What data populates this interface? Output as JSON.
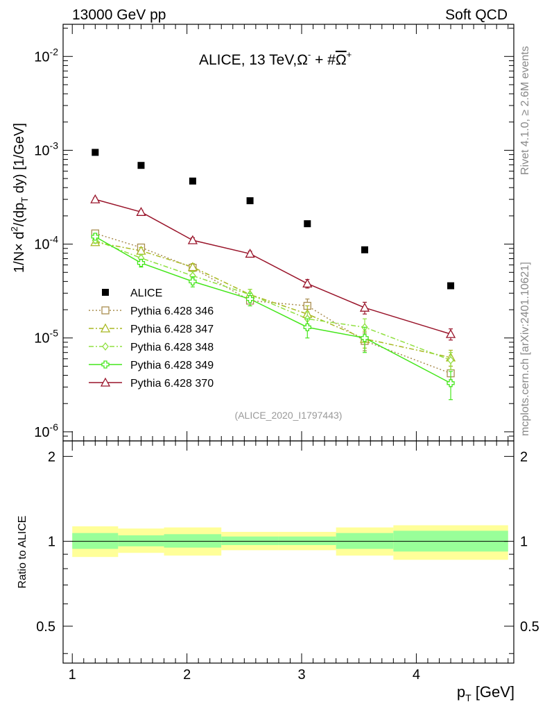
{
  "header": {
    "left": "13000 GeV pp",
    "right": "Soft QCD"
  },
  "side_labels": {
    "rivet": "Rivet 4.1.0, ≥ 2.6M events",
    "mcplots": "mcplots.cern.ch [arXiv:2401.10621]"
  },
  "colors": {
    "alice": "#000000",
    "p346": "#a98d4f",
    "p347": "#a8b820",
    "p348": "#90e040",
    "p349": "#44e61a",
    "p370": "#99142a",
    "band_inner": "#99ff99",
    "band_outer": "#ffff99"
  },
  "chart_data": {
    "type": "scatter",
    "title": "ALICE, 13 TeV,Ω⁻ + #Ω̅⁺",
    "title_main": "ALICE, 13 TeV,",
    "title_formula": "Ω",
    "title_sup1": "-",
    "title_plus": " + #",
    "title_formula2": "Ω",
    "title_sup2": "+",
    "analysis_id": "(ALICE_2020_I1797443)",
    "ylabel": "1/N × d²/(dp_T dy) [1/GeV]",
    "ylabel_parts": [
      "1/N",
      "×",
      " d",
      "2",
      "/(dp",
      "T",
      " dy) [1/GeV]"
    ],
    "xlabel_main": "p",
    "xlabel_sub": "T",
    "xlabel_unit": " [GeV]",
    "xlim": [
      0.92,
      4.85
    ],
    "ylim": [
      8e-07,
      0.022
    ],
    "ylog": true,
    "y_ticks": [
      {
        "value": 1e-06,
        "mant": "10",
        "exp": "-6"
      },
      {
        "value": 1e-05,
        "mant": "10",
        "exp": "-5"
      },
      {
        "value": 0.0001,
        "mant": "10",
        "exp": "-4"
      },
      {
        "value": 0.001,
        "mant": "10",
        "exp": "-3"
      },
      {
        "value": 0.01,
        "mant": "10",
        "exp": "-2"
      }
    ],
    "x_ticks": [
      "1",
      "2",
      "3",
      "4"
    ],
    "x_tick_values": [
      1,
      2,
      3,
      4
    ],
    "ratio": {
      "ylabel": "Ratio to ALICE",
      "ylim": [
        0.37,
        2.27
      ],
      "ticks": [
        "0.5",
        "1",
        "2"
      ],
      "tick_values": [
        0.5,
        1,
        2
      ],
      "bins": [
        [
          1.0,
          1.4
        ],
        [
          1.4,
          1.8
        ],
        [
          1.8,
          2.3
        ],
        [
          2.3,
          2.8
        ],
        [
          2.8,
          3.3
        ],
        [
          3.3,
          3.8
        ],
        [
          3.8,
          4.8
        ]
      ],
      "inner_band": [
        [
          0.94,
          1.07
        ],
        [
          0.96,
          1.05
        ],
        [
          0.95,
          1.06
        ],
        [
          0.97,
          1.04
        ],
        [
          0.97,
          1.04
        ],
        [
          0.94,
          1.07
        ],
        [
          0.92,
          1.09
        ]
      ],
      "outer_band": [
        [
          0.88,
          1.13
        ],
        [
          0.91,
          1.11
        ],
        [
          0.89,
          1.12
        ],
        [
          0.93,
          1.08
        ],
        [
          0.93,
          1.08
        ],
        [
          0.89,
          1.12
        ],
        [
          0.86,
          1.14
        ]
      ]
    },
    "x": [
      1.2,
      1.6,
      2.05,
      2.55,
      3.05,
      3.55,
      4.3
    ],
    "series": [
      {
        "name": "ALICE",
        "key": "alice",
        "marker": "square-filled",
        "line": "none",
        "values": [
          0.00095,
          0.00069,
          0.00047,
          0.00029,
          0.000165,
          8.7e-05,
          3.6e-05
        ],
        "errors": [
          0,
          0,
          0,
          0,
          0,
          0,
          0
        ]
      },
      {
        "name": "Pythia 6.428 346",
        "key": "p346",
        "marker": "square-open",
        "line": "dotted",
        "values": [
          0.00013,
          9.2e-05,
          5.6e-05,
          2.5e-05,
          2.2e-05,
          9.3e-06,
          4.2e-06
        ],
        "errors": [
          8e-06,
          7e-06,
          5e-06,
          3e-06,
          4e-06,
          2e-06,
          8e-07
        ]
      },
      {
        "name": "Pythia 6.428 347",
        "key": "p347",
        "marker": "triangle-open",
        "line": "dashdot",
        "values": [
          0.000105,
          8.5e-05,
          5.7e-05,
          2.9e-05,
          1.8e-05,
          9.8e-06,
          6.2e-06
        ],
        "errors": [
          8e-06,
          7e-06,
          5e-06,
          4e-06,
          4e-06,
          2e-06,
          1.2e-06
        ]
      },
      {
        "name": "Pythia 6.428 348",
        "key": "p348",
        "marker": "diamond-open",
        "line": "dashdot",
        "values": [
          0.00011,
          7.1e-05,
          4.6e-05,
          2.9e-05,
          1.6e-05,
          1.3e-05,
          5.8e-06
        ],
        "errors": [
          8e-06,
          6e-06,
          5e-06,
          4e-06,
          3e-06,
          3e-06,
          1.2e-06
        ]
      },
      {
        "name": "Pythia 6.428 349",
        "key": "p349",
        "marker": "cross-open",
        "line": "solid",
        "values": [
          0.00012,
          6.3e-05,
          4e-05,
          2.6e-05,
          1.3e-05,
          1e-05,
          3.3e-06
        ],
        "errors": [
          9e-06,
          6e-06,
          5e-06,
          4e-06,
          3e-06,
          3e-06,
          1.1e-06
        ]
      },
      {
        "name": "Pythia 6.428 370",
        "key": "p370",
        "marker": "triangle-open",
        "line": "solid",
        "values": [
          0.0003,
          0.00022,
          0.00011,
          7.9e-05,
          3.8e-05,
          2.1e-05,
          1.1e-05
        ],
        "errors": [
          1.2e-05,
          1e-05,
          7e-06,
          5e-06,
          4e-06,
          3e-06,
          1.5e-06
        ]
      }
    ]
  }
}
